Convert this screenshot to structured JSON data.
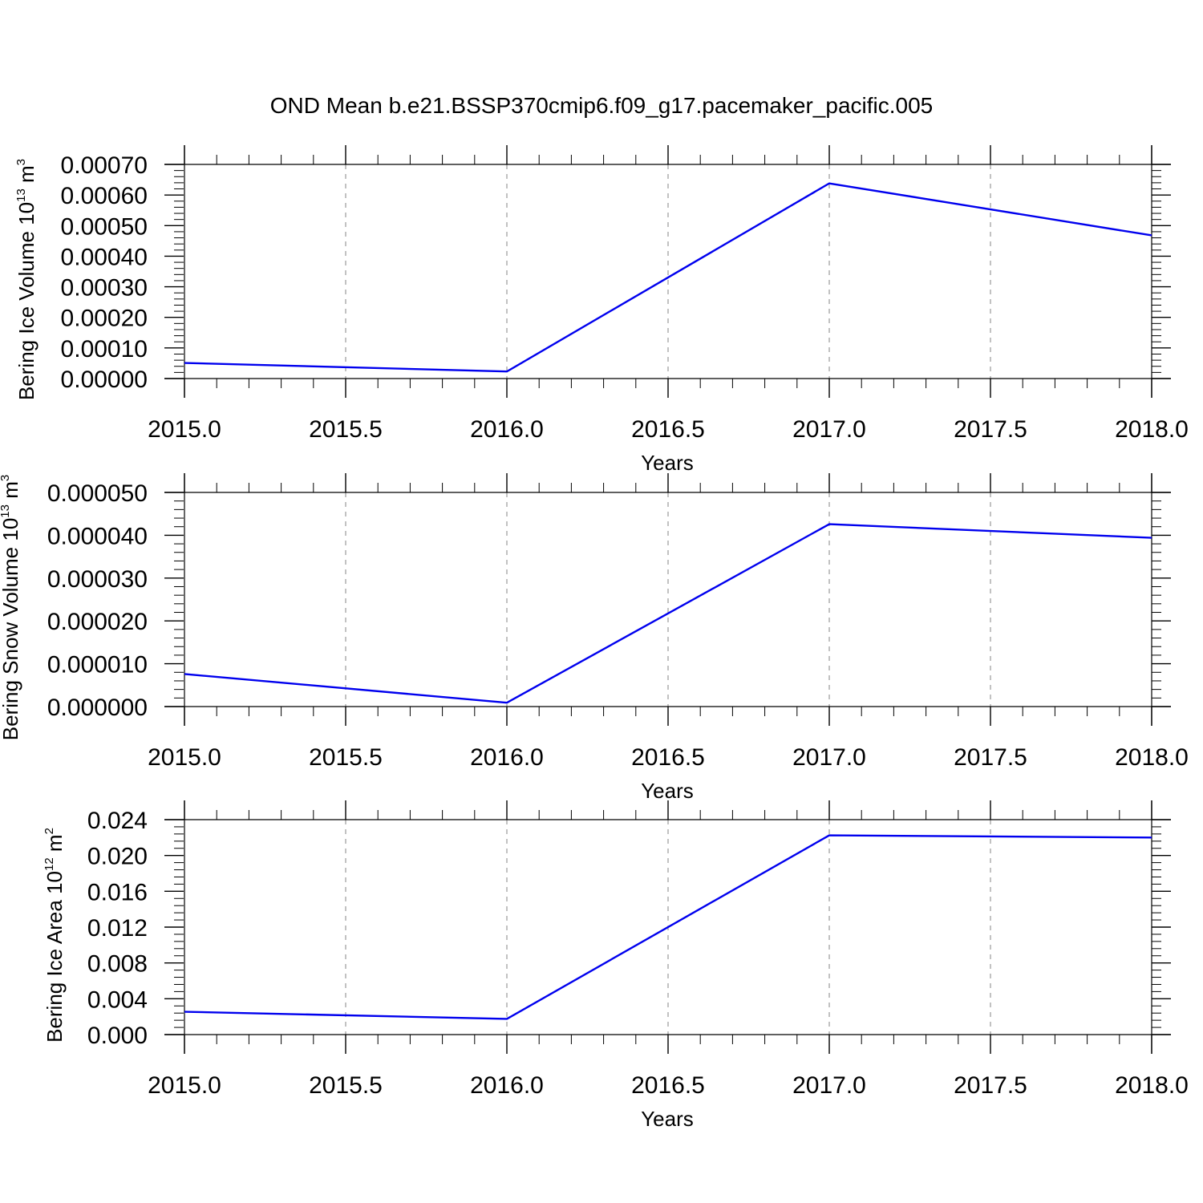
{
  "chart_data": [
    {
      "type": "line",
      "title": "OND Mean b.e21.BSSP370cmip6.f09_g17.pacemaker_pacific.005",
      "xlabel": "Years",
      "ylabel_main": "Bering Ice Volume 10",
      "ylabel_exp": "13",
      "ylabel_unit": " m",
      "ylabel_unit_exp": "3",
      "xlim": [
        2015.0,
        2018.0
      ],
      "ylim": [
        0.0,
        0.0007
      ],
      "xticks": [
        2015.0,
        2015.5,
        2016.0,
        2016.5,
        2017.0,
        2017.5,
        2018.0
      ],
      "xtick_labels": [
        "2015.0",
        "2015.5",
        "2016.0",
        "2016.5",
        "2017.0",
        "2017.5",
        "2018.0"
      ],
      "yticks": [
        0,
        0.0001,
        0.0002,
        0.0003,
        0.0004,
        0.0005,
        0.0006,
        0.0007
      ],
      "ytick_labels": [
        "0.00000",
        "0.00010",
        "0.00020",
        "0.00030",
        "0.00040",
        "0.00050",
        "0.00060",
        "0.00070"
      ],
      "grid": "x-dashed",
      "series": [
        {
          "x": [
            2015,
            2016,
            2017,
            2018
          ],
          "values": [
            5.1e-05,
            2.3e-05,
            0.000638,
            0.000468
          ],
          "color": "#0000ee"
        }
      ]
    },
    {
      "type": "line",
      "xlabel": "Years",
      "ylabel_main": "Bering Snow Volume 10",
      "ylabel_exp": "13",
      "ylabel_unit": " m",
      "ylabel_unit_exp": "3",
      "xlim": [
        2015.0,
        2018.0
      ],
      "ylim": [
        0.0,
        5e-05
      ],
      "xticks": [
        2015.0,
        2015.5,
        2016.0,
        2016.5,
        2017.0,
        2017.5,
        2018.0
      ],
      "xtick_labels": [
        "2015.0",
        "2015.5",
        "2016.0",
        "2016.5",
        "2017.0",
        "2017.5",
        "2018.0"
      ],
      "yticks": [
        0,
        1e-05,
        2e-05,
        3e-05,
        4e-05,
        5e-05
      ],
      "ytick_labels": [
        "0.000000",
        "0.000010",
        "0.000020",
        "0.000030",
        "0.000040",
        "0.000050"
      ],
      "grid": "x-dashed",
      "series": [
        {
          "x": [
            2015,
            2016,
            2017,
            2018
          ],
          "values": [
            7.6e-06,
            9e-07,
            4.26e-05,
            3.94e-05
          ],
          "color": "#0000ee"
        }
      ]
    },
    {
      "type": "line",
      "xlabel": "Years",
      "ylabel_main": "Bering Ice Area 10",
      "ylabel_exp": "12",
      "ylabel_unit": " m",
      "ylabel_unit_exp": "2",
      "xlim": [
        2015.0,
        2018.0
      ],
      "ylim": [
        0.0,
        0.024
      ],
      "xticks": [
        2015.0,
        2015.5,
        2016.0,
        2016.5,
        2017.0,
        2017.5,
        2018.0
      ],
      "xtick_labels": [
        "2015.0",
        "2015.5",
        "2016.0",
        "2016.5",
        "2017.0",
        "2017.5",
        "2018.0"
      ],
      "yticks": [
        0,
        0.004,
        0.008,
        0.012,
        0.016,
        0.02,
        0.024
      ],
      "ytick_labels": [
        "0.000",
        "0.004",
        "0.008",
        "0.012",
        "0.016",
        "0.020",
        "0.024"
      ],
      "grid": "x-dashed",
      "series": [
        {
          "x": [
            2015,
            2016,
            2017,
            2018
          ],
          "values": [
            0.00255,
            0.00175,
            0.02225,
            0.022
          ],
          "color": "#0000ee"
        }
      ]
    }
  ]
}
